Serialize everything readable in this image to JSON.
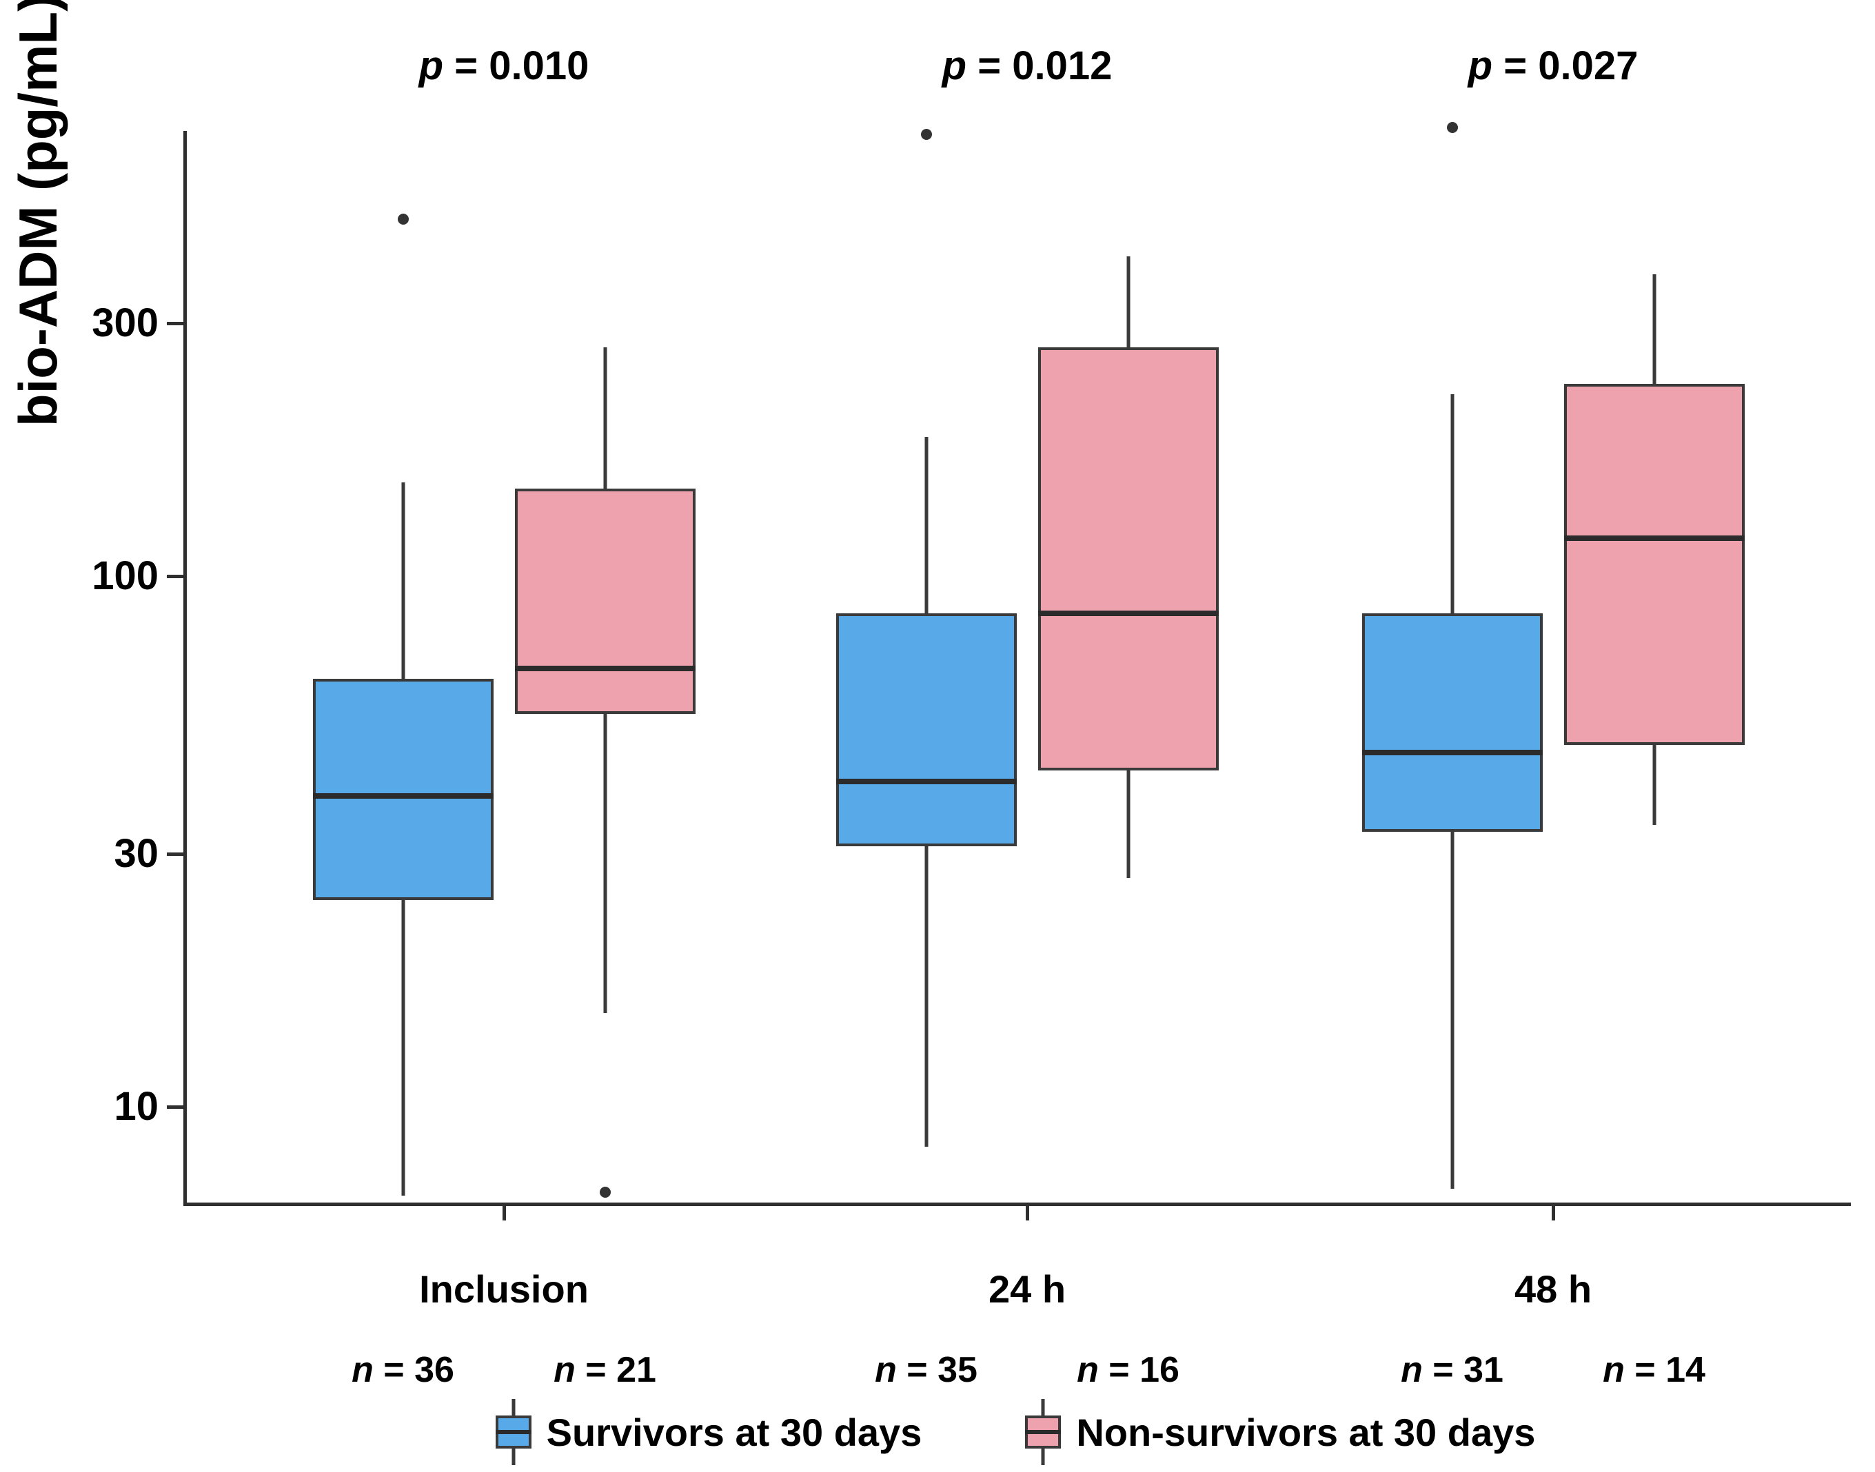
{
  "chart_data": {
    "type": "boxplot",
    "title": "",
    "ylabel": "bio-ADM (pg/mL)",
    "xlabel": "",
    "log_scale_y": true,
    "ylim": [
      6.5,
      700
    ],
    "yticks": [
      300,
      100,
      30,
      10
    ],
    "grid": false,
    "legend_position": "bottom",
    "categories": [
      "Inclusion",
      "24 h",
      "48 h"
    ],
    "p_values": [
      "p = 0.010",
      "p = 0.012",
      "p = 0.027"
    ],
    "series": [
      {
        "name": "Survivors at 30 days",
        "color": "#58A9E8",
        "n_labels": [
          "n = 36",
          "n = 35",
          "n = 31"
        ],
        "boxes": [
          {
            "whisker_low": 6.8,
            "q1": 24.5,
            "median": 38.5,
            "q3": 64,
            "whisker_high": 150,
            "outliers": [
              470
            ]
          },
          {
            "whisker_low": 8.4,
            "q1": 31,
            "median": 41,
            "q3": 85,
            "whisker_high": 183,
            "outliers": [
              680
            ]
          },
          {
            "whisker_low": 7,
            "q1": 33,
            "median": 46.5,
            "q3": 85,
            "whisker_high": 220,
            "outliers": [
              700
            ]
          }
        ]
      },
      {
        "name": "Non-survivors at 30 days",
        "color": "#EDA2AE",
        "n_labels": [
          "n = 21",
          "n = 16",
          "n = 14"
        ],
        "boxes": [
          {
            "whisker_low": 15,
            "q1": 55,
            "median": 67,
            "q3": 146,
            "whisker_high": 270,
            "outliers": [
              6.9
            ]
          },
          {
            "whisker_low": 27,
            "q1": 43,
            "median": 85,
            "q3": 270,
            "whisker_high": 400,
            "outliers": []
          },
          {
            "whisker_low": 34,
            "q1": 48,
            "median": 118,
            "q3": 230,
            "whisker_high": 370,
            "outliers": []
          }
        ]
      }
    ],
    "colors": {
      "survivors": "#58A9E8",
      "non_survivors": "#EDA2AE",
      "axis": "#2f2f2f",
      "box_stroke": "#3a3a3a",
      "text": "#000000"
    }
  }
}
